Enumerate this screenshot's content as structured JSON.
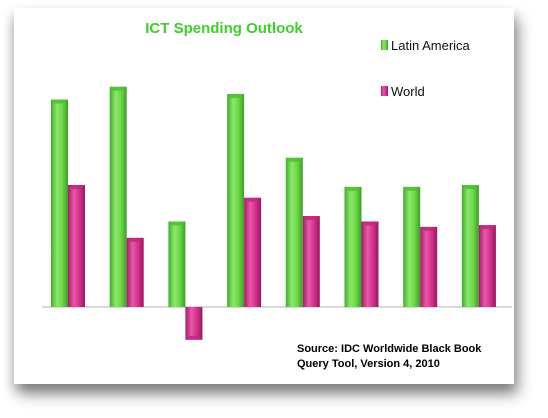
{
  "chart_data": {
    "type": "bar",
    "title": "ICT Spending Outlook",
    "categories": [
      "",
      "",
      "",
      "",
      "",
      "",
      "",
      ""
    ],
    "series": [
      {
        "name": "Latin America",
        "color": "#6fd94a",
        "values": [
          11.4,
          12.1,
          4.7,
          11.7,
          8.2,
          6.6,
          6.6,
          6.7
        ]
      },
      {
        "name": "World",
        "color": "#d6338f",
        "values": [
          6.7,
          3.8,
          -1.8,
          6.0,
          5.0,
          4.7,
          4.4,
          4.5
        ]
      }
    ],
    "ylim": [
      -2.0,
      14.5
    ],
    "grid": false,
    "legend": "top-right",
    "annotation": {
      "line1": "Source: IDC Worldwide Black Book",
      "line2": "Query Tool, Version 4, 2010"
    }
  }
}
